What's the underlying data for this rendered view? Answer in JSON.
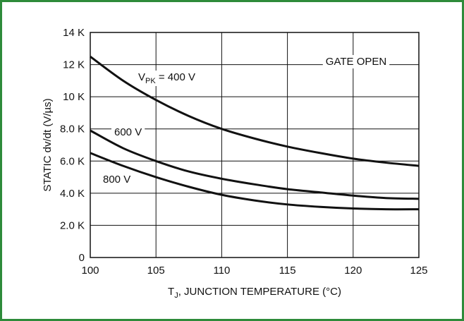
{
  "chart_data": {
    "type": "line",
    "title": "",
    "xlabel_main": "T",
    "xlabel_sub": "J",
    "xlabel_rest": ", JUNCTION TEMPERATURE (°C)",
    "ylabel": "STATIC dv/dt (V/µs)",
    "xlim": [
      100,
      125
    ],
    "ylim": [
      0,
      14000
    ],
    "x_ticks": [
      100,
      105,
      110,
      115,
      120,
      125
    ],
    "x_tick_labels": [
      "100",
      "105",
      "110",
      "115",
      "120",
      "125"
    ],
    "y_ticks": [
      0,
      2000,
      4000,
      6000,
      8000,
      10000,
      12000,
      14000
    ],
    "y_tick_labels": [
      "0",
      "2.0 K",
      "4.0 K",
      "6.0 K",
      "8.0 K",
      "10 K",
      "12 K",
      "14 K"
    ],
    "grid": true,
    "condition_label": "GATE OPEN",
    "series": [
      {
        "name": "VPK = 400 V",
        "label_main": "V",
        "label_sub": "PK",
        "label_rest": " = 400 V",
        "x": [
          100,
          102.5,
          105,
          107.5,
          110,
          112.5,
          115,
          117.5,
          120,
          122.5,
          125
        ],
        "y": [
          12500,
          11000,
          9800,
          8800,
          8000,
          7400,
          6900,
          6500,
          6150,
          5900,
          5700
        ]
      },
      {
        "name": "600 V",
        "label": "600 V",
        "x": [
          100,
          102.5,
          105,
          107.5,
          110,
          112.5,
          115,
          117.5,
          120,
          122.5,
          125
        ],
        "y": [
          7900,
          6800,
          6000,
          5350,
          4900,
          4550,
          4250,
          4050,
          3850,
          3700,
          3650
        ]
      },
      {
        "name": "800 V",
        "label": "800 V",
        "x": [
          100,
          102.5,
          105,
          107.5,
          110,
          112.5,
          115,
          117.5,
          120,
          122.5,
          125
        ],
        "y": [
          6500,
          5700,
          5000,
          4400,
          3900,
          3550,
          3300,
          3150,
          3050,
          3000,
          3000
        ]
      }
    ]
  }
}
